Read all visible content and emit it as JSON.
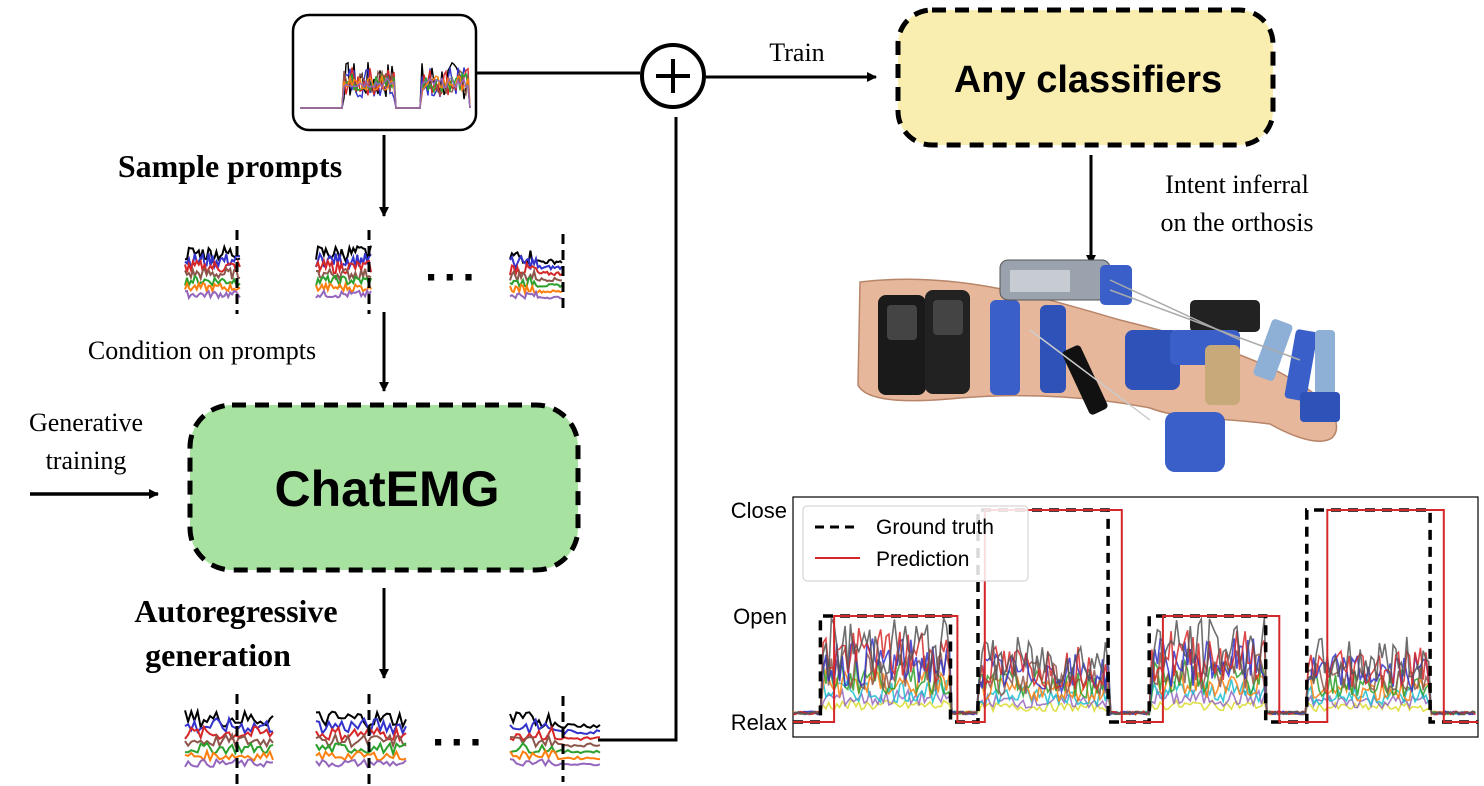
{
  "diagram": {
    "labels": {
      "sample_prompts": "Sample prompts",
      "condition_on_prompts": "Condition on prompts",
      "generative_training_line1": "Generative",
      "generative_training_line2": "training",
      "chatemg": "ChatEMG",
      "autoregressive_line1": "Autoregressive",
      "autoregressive_line2": "generation",
      "train": "Train",
      "any_classifiers": "Any classifiers",
      "intent_line1": "Intent inferral",
      "intent_line2": "on the orthosis",
      "ellipsis": "···",
      "plus": "+"
    },
    "colors": {
      "chatemg_fill": "#a8e2a0",
      "classifier_fill": "#f9eeb0",
      "line": "#000000"
    },
    "emg_colors": [
      "#000000",
      "#3333cc",
      "#d62728",
      "#8c564b",
      "#2ca02c",
      "#ff7f0e",
      "#9467bd",
      "#17becf",
      "#bcbd22",
      "#e377c2"
    ],
    "icons": [
      "plus-circle-icon",
      "hand-orthosis-photo"
    ]
  },
  "chart_data": {
    "type": "line",
    "title": "",
    "xlabel": "",
    "ylabel": "",
    "y_tick_labels": [
      "Close",
      "Open",
      "Relax"
    ],
    "y_tick_values": [
      2,
      1,
      0
    ],
    "legend": {
      "placement": "top-left",
      "entries": [
        {
          "name": "Ground truth",
          "style": "dashed",
          "color": "#000000"
        },
        {
          "name": "Prediction",
          "style": "solid",
          "color": "#d62728"
        }
      ]
    },
    "series": [
      {
        "name": "Ground truth",
        "x": [
          0,
          4,
          4,
          23,
          23,
          27,
          27,
          46,
          46,
          52,
          52,
          69,
          69,
          75,
          75,
          93,
          93,
          97,
          97,
          100
        ],
        "values": [
          0,
          0,
          1,
          1,
          0,
          0,
          2,
          2,
          0,
          0,
          1,
          1,
          0,
          0,
          2,
          2,
          0,
          0,
          0,
          0
        ]
      },
      {
        "name": "Prediction",
        "x": [
          0,
          6,
          6,
          24,
          24,
          28,
          28,
          48,
          48,
          54,
          54,
          71,
          71,
          78,
          78,
          95,
          95,
          100
        ],
        "values": [
          0,
          0,
          1,
          1,
          0,
          0,
          2,
          2,
          0,
          0,
          1,
          1,
          0,
          0,
          2,
          2,
          0,
          0
        ]
      }
    ],
    "ylim": [
      -0.1,
      2.1
    ],
    "xlim": [
      0,
      100
    ]
  }
}
